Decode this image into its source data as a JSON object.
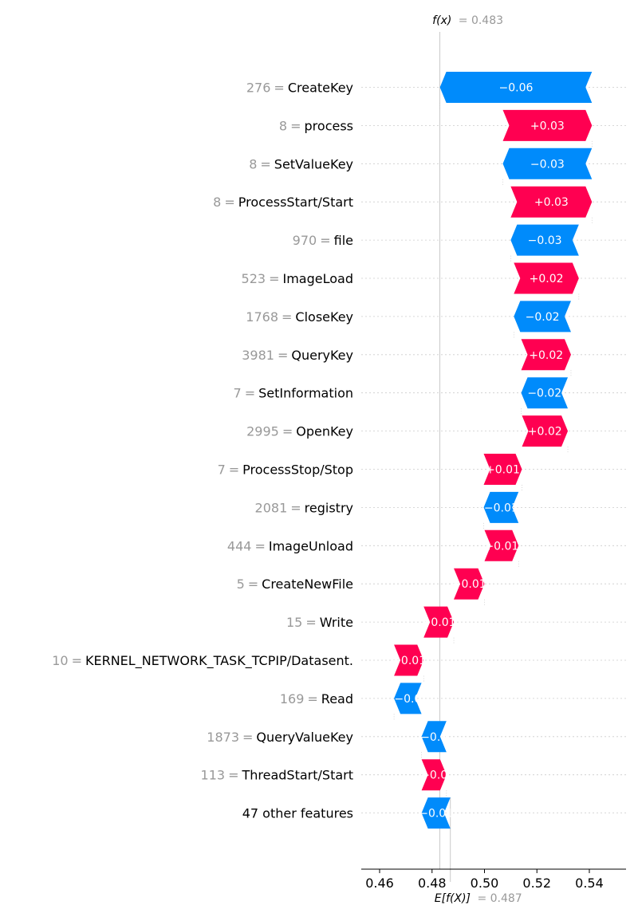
{
  "chart_data": {
    "type": "waterfall",
    "fx_label": "f(x)",
    "fx_value": "= 0.483",
    "fx": 0.483,
    "efx_label": "E[f(X)]",
    "efx_value": "= 0.487",
    "efx": 0.487,
    "xlim": [
      0.453,
      0.554
    ],
    "xticks": [
      0.46,
      0.48,
      0.5,
      0.52,
      0.54
    ],
    "xtick_labels": [
      "0.46",
      "0.48",
      "0.50",
      "0.52",
      "0.54"
    ],
    "colors": {
      "positive": "#ff0051",
      "negative": "#008bfb"
    },
    "features": [
      {
        "value": "276",
        "name": "CreateKey",
        "start": 0.541,
        "end": 0.483,
        "label": "−0.06"
      },
      {
        "value": "8",
        "name": "process",
        "start": 0.507,
        "end": 0.541,
        "label": "+0.03"
      },
      {
        "value": "8",
        "name": "SetValueKey",
        "start": 0.541,
        "end": 0.507,
        "label": "−0.03"
      },
      {
        "value": "8",
        "name": "ProcessStart/Start",
        "start": 0.51,
        "end": 0.541,
        "label": "+0.03"
      },
      {
        "value": "970",
        "name": "file",
        "start": 0.536,
        "end": 0.51,
        "label": "−0.03"
      },
      {
        "value": "523",
        "name": "ImageLoad",
        "start": 0.5112,
        "end": 0.536,
        "label": "+0.02"
      },
      {
        "value": "1768",
        "name": "CloseKey",
        "start": 0.533,
        "end": 0.5112,
        "label": "−0.02"
      },
      {
        "value": "3981",
        "name": "QueryKey",
        "start": 0.514,
        "end": 0.533,
        "label": "+0.02"
      },
      {
        "value": "7",
        "name": "SetInformation",
        "start": 0.5318,
        "end": 0.514,
        "label": "−0.02"
      },
      {
        "value": "2995",
        "name": "OpenKey",
        "start": 0.5143,
        "end": 0.5318,
        "label": "+0.02"
      },
      {
        "value": "7",
        "name": "ProcessStop/Stop",
        "start": 0.4997,
        "end": 0.5143,
        "label": "+0.01"
      },
      {
        "value": "2081",
        "name": "registry",
        "start": 0.513,
        "end": 0.4997,
        "label": "−0.01"
      },
      {
        "value": "444",
        "name": "ImageUnload",
        "start": 0.5,
        "end": 0.513,
        "label": "+0.01"
      },
      {
        "value": "5",
        "name": "CreateNewFile",
        "start": 0.4883,
        "end": 0.5,
        "label": "+0.01"
      },
      {
        "value": "15",
        "name": "Write",
        "start": 0.4768,
        "end": 0.4883,
        "label": "+0.01"
      },
      {
        "value": "10",
        "name": "KERNEL_NETWORK_TASK_TCPIP/Datasent.",
        "start": 0.4655,
        "end": 0.4768,
        "label": "+0.01"
      },
      {
        "value": "169",
        "name": "Read",
        "start": 0.476,
        "end": 0.4655,
        "label": "−0.0"
      },
      {
        "value": "1873",
        "name": "QueryValueKey",
        "start": 0.4855,
        "end": 0.476,
        "label": "−0.0"
      },
      {
        "value": "113",
        "name": "ThreadStart/Start",
        "start": 0.476,
        "end": 0.4855,
        "label": "+0.0"
      },
      {
        "value": "",
        "name": "47 other features",
        "start": 0.487,
        "end": 0.476,
        "label": "−0.01"
      }
    ]
  }
}
